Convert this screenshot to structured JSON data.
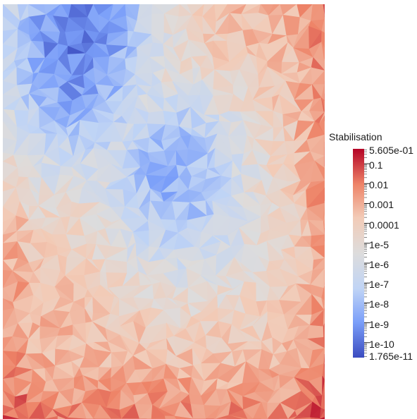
{
  "legend": {
    "title": "Stabilisation",
    "max_label": "5.605e-01",
    "min_label": "1.765e-11",
    "scale": "log",
    "range": [
      1.765e-11,
      0.5605
    ],
    "colormap": [
      "#3b4cc0",
      "#7b9ff9",
      "#c0d4f5",
      "#dddcdc",
      "#f2cbb7",
      "#ee8468",
      "#b40426"
    ],
    "tick_labels": [
      "0.1",
      "0.01",
      "0.001",
      "0.0001",
      "1e-5",
      "1e-6",
      "1e-7",
      "1e-8",
      "1e-9",
      "1e-10"
    ]
  }
}
